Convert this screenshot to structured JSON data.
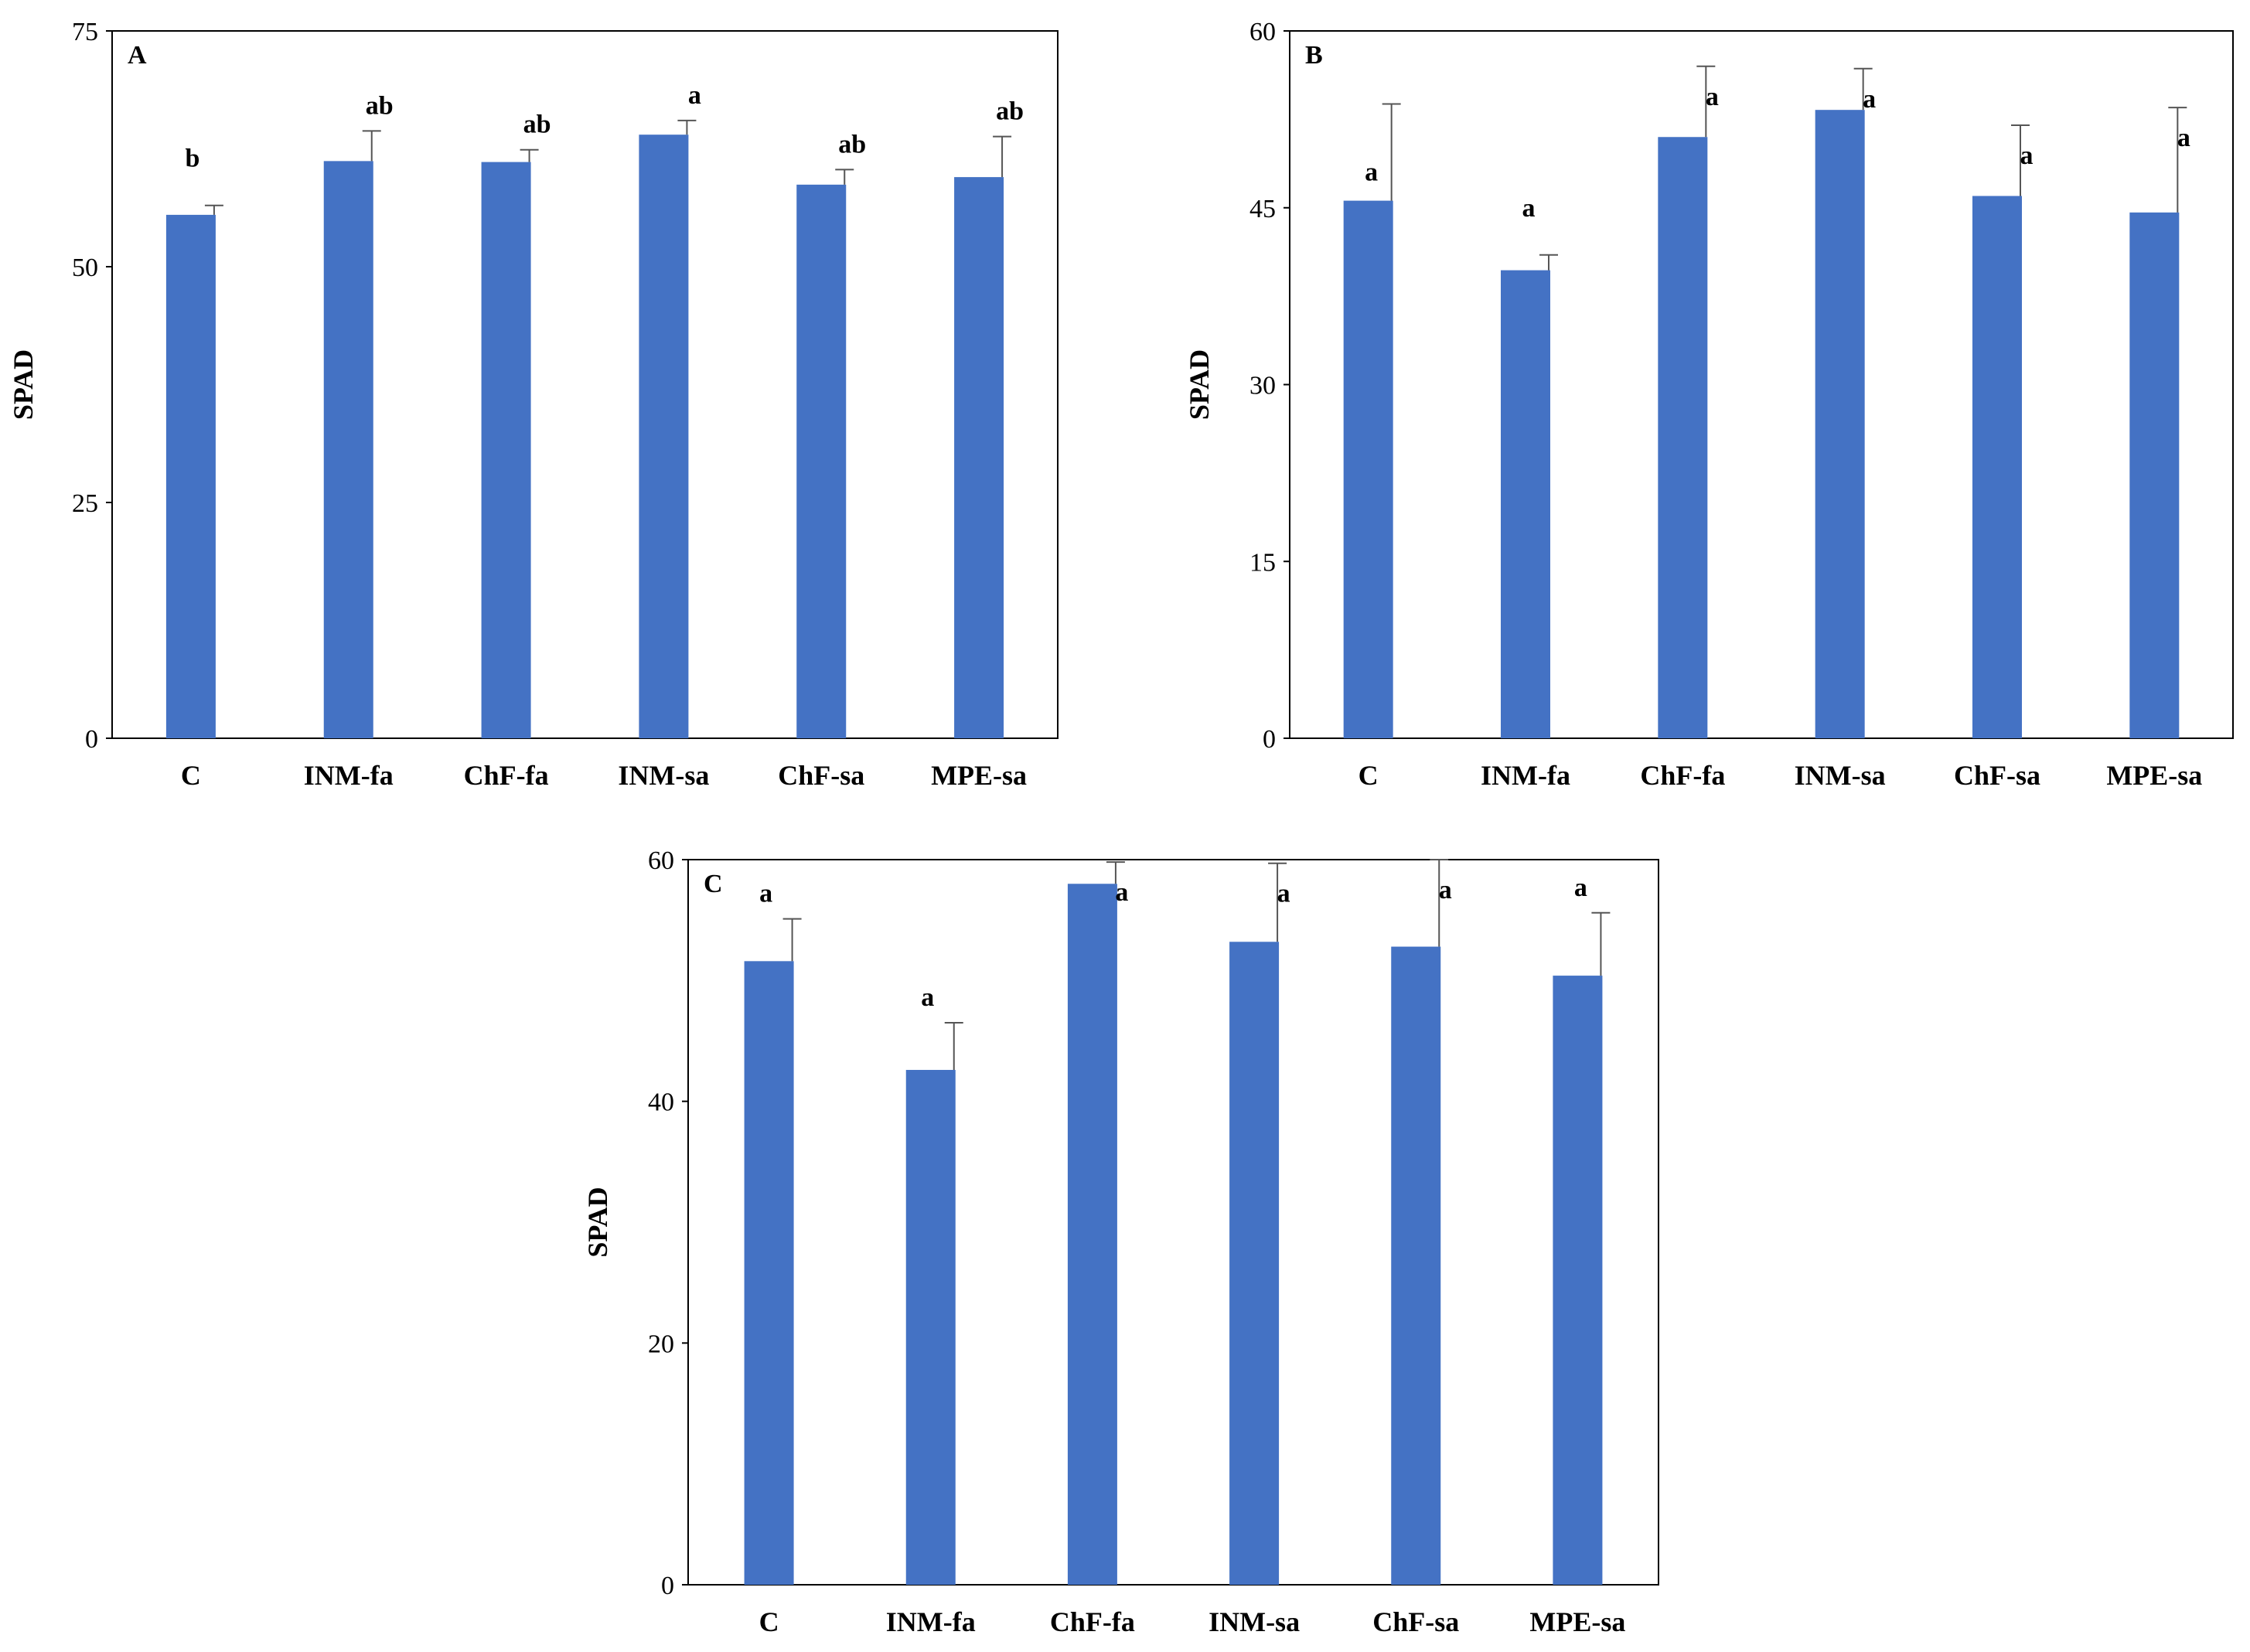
{
  "chart_data": [
    {
      "type": "bar",
      "panel": "A",
      "ylabel": "SPAD",
      "ylim": [
        0,
        75
      ],
      "yticks": [
        0,
        25,
        50,
        75
      ],
      "categories": [
        "C",
        "INM-fa",
        "ChF-fa",
        "INM-sa",
        "ChF-sa",
        "MPE-sa"
      ],
      "values": [
        55.5,
        61.2,
        61.1,
        64.0,
        58.7,
        59.5
      ],
      "errors": [
        1.0,
        3.2,
        1.3,
        1.5,
        1.6,
        4.3
      ],
      "letters": [
        "b",
        "ab",
        "ab",
        "a",
        "ab",
        "ab"
      ],
      "bar_color": "#4472C4"
    },
    {
      "type": "bar",
      "panel": "B",
      "ylabel": "SPAD",
      "ylim": [
        0,
        60
      ],
      "yticks": [
        0,
        15,
        30,
        45,
        60
      ],
      "categories": [
        "C",
        "INM-fa",
        "ChF-fa",
        "INM-sa",
        "ChF-sa",
        "MPE-sa"
      ],
      "values": [
        45.6,
        39.7,
        51.0,
        53.3,
        46.0,
        44.6
      ],
      "errors": [
        8.2,
        1.3,
        6.0,
        3.5,
        6.0,
        8.9
      ],
      "letters": [
        "a",
        "a",
        "a",
        "a",
        "a",
        "a"
      ],
      "bar_color": "#4472C4"
    },
    {
      "type": "bar",
      "panel": "C",
      "ylabel": "SPAD",
      "ylim": [
        0,
        60
      ],
      "yticks": [
        0,
        20,
        40,
        60
      ],
      "categories": [
        "C",
        "INM-fa",
        "ChF-fa",
        "INM-sa",
        "ChF-sa",
        "MPE-sa"
      ],
      "values": [
        51.6,
        42.6,
        58.0,
        53.2,
        52.8,
        50.4
      ],
      "errors": [
        3.5,
        3.9,
        1.8,
        6.5,
        7.5,
        5.2
      ],
      "letters": [
        "a",
        "a",
        "a",
        "a",
        "a",
        "a"
      ],
      "bar_color": "#4472C4"
    }
  ]
}
